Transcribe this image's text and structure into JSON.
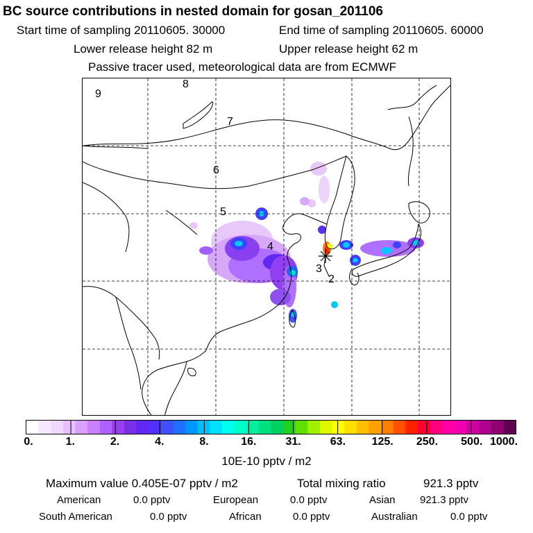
{
  "title": "BC  source contributions in nested domain for gosan_201106",
  "header": {
    "start_label": "Start time of sampling 20110605. 30000",
    "end_label": "End time of sampling 20110605. 60000",
    "lower_label": "Lower release height   82 m",
    "upper_label": "Upper release height   62 m",
    "note": "Passive tracer used, meteorological data are from ECMWF"
  },
  "map": {
    "trajectory_labels": [
      "9",
      "8",
      "7",
      "6",
      "5",
      "4",
      "3",
      "2"
    ],
    "receptor": "gosan",
    "colors": {
      "coast": "#000000",
      "grid": "#000000",
      "source_low": "#e8c8f8",
      "source_mid": "#a040ff",
      "source_high": "#4040ff",
      "hotspot": "#00c8ff"
    }
  },
  "colorbar": {
    "ticks": [
      "0.",
      "1.",
      "2.",
      "4.",
      "8.",
      "16.",
      "31.",
      "63.",
      "125.",
      "250.",
      "500.",
      "1000."
    ],
    "colors": [
      "#ffffff",
      "#f8e8ff",
      "#f0d8ff",
      "#e8c0ff",
      "#d8a0ff",
      "#c880ff",
      "#b060ff",
      "#9840f0",
      "#7830e8",
      "#6028f0",
      "#5030ff",
      "#4050ff",
      "#2070ff",
      "#0098ff",
      "#00c0ff",
      "#00e0ff",
      "#00ffee",
      "#00ffc8",
      "#00f0a0",
      "#00e080",
      "#00d060",
      "#20d020",
      "#60e000",
      "#a0f000",
      "#e0f800",
      "#ffff00",
      "#ffe000",
      "#ffc000",
      "#ffa000",
      "#ff8000",
      "#ff5000",
      "#ff2000",
      "#ff0030",
      "#ff0080",
      "#ff00a8",
      "#f000b0",
      "#d000a0",
      "#b00090",
      "#900070",
      "#600050"
    ],
    "unit": "10E-10 pptv / m2"
  },
  "summary": {
    "max_label": "Maximum value  0.405E-07 pptv / m2",
    "total_label": "Total mixing ratio",
    "total_value": "921.3 pptv",
    "regions": [
      {
        "name": "American",
        "value": "0.0 pptv"
      },
      {
        "name": "European",
        "value": "0.0 pptv"
      },
      {
        "name": "Asian",
        "value": "921.3 pptv"
      },
      {
        "name": "South American",
        "value": "0.0 pptv"
      },
      {
        "name": "African",
        "value": "0.0 pptv"
      },
      {
        "name": "Australian",
        "value": "0.0 pptv"
      }
    ]
  }
}
